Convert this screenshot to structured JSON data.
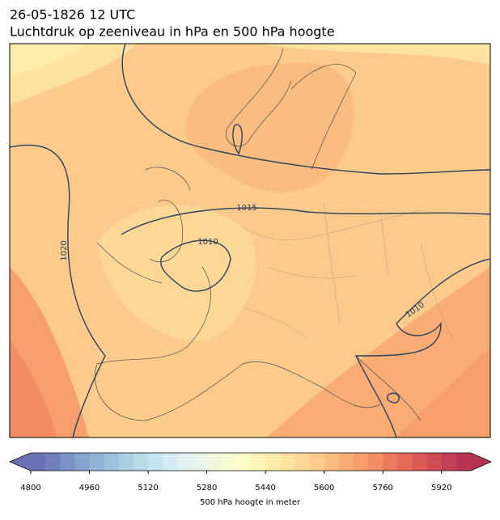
{
  "header": {
    "date": "26-05-1826 12 UTC",
    "title": "Luchtdruk op zeeniveau in hPa en 500 hPa hoogte"
  },
  "contour_labels": [
    "1015",
    "1010",
    "1020",
    "1010"
  ],
  "colorbar": {
    "label": "500 hPa hoogte in meter",
    "lim": [
      4800,
      6000
    ],
    "ticks": [
      4800,
      4960,
      5120,
      5280,
      5440,
      5600,
      5760,
      5920
    ],
    "colors": [
      "#6a73b5",
      "#6f80bb",
      "#7a93c4",
      "#85a3cc",
      "#90b4d6",
      "#9dc2dd",
      "#aad0e3",
      "#b8dbe9",
      "#c6e4ef",
      "#d3ecf3",
      "#e0f2f2",
      "#e8f5ea",
      "#f1f8dd",
      "#f8fbd0",
      "#fdfbc8",
      "#fff5b8",
      "#feedaa",
      "#fee3a0",
      "#fdd795",
      "#fcca8a",
      "#fbbd7f",
      "#f9ad75",
      "#f69e6c",
      "#f28d65",
      "#ec7b5e",
      "#e56a59",
      "#dc5a56",
      "#d04c55",
      "#c33f55",
      "#b53553"
    ]
  }
}
